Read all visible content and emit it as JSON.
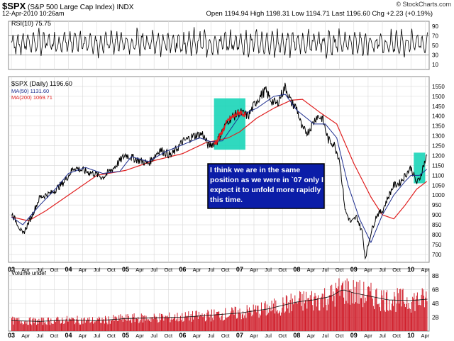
{
  "header": {
    "symbol": "$SPX",
    "name": "(S&P 500 Large Cap Index)",
    "exchange": "INDX",
    "date": "12-Apr-2010 10:26am",
    "open_label": "Open",
    "open": "1194.94",
    "high_label": "High",
    "high": "1198.31",
    "low_label": "Low",
    "low": "1194.71",
    "last_label": "Last",
    "last": "1196.60",
    "chg_label": "Chg",
    "chg": "+2.23 (+0.19%)",
    "copyright": "© StockCharts.com"
  },
  "colors": {
    "price": "#000000",
    "ma50": "#1f2f8f",
    "ma200": "#e02020",
    "highlight": "#19d5b8",
    "volume": "#d01f2b",
    "note_text": "#ffffff",
    "note_bg": "#0b1da8"
  },
  "annotation": "I think we are in the same position as we were in `07 only I expect it to unfold more rapidly this time.",
  "chart_data": [
    {
      "type": "line",
      "panel": "rsi",
      "legend": "RSI(10) 75.75",
      "y_ticks": [
        10,
        30,
        50,
        70,
        90
      ],
      "ylim": [
        0,
        100
      ],
      "reference_lines": [
        30,
        70
      ],
      "note": "oscillates mostly between 30 and 80"
    },
    {
      "type": "line",
      "panel": "price",
      "legend_title": "$SPX (Daily) 1196.60",
      "series": [
        {
          "name": "MA(50) 1131.60",
          "color": "#1f2f8f",
          "x": [
            2003.0,
            2003.2,
            2003.5,
            2003.8,
            2004.0,
            2004.3,
            2004.6,
            2004.9,
            2005.1,
            2005.4,
            2005.7,
            2006.0,
            2006.3,
            2006.5,
            2006.7,
            2007.0,
            2007.3,
            2007.6,
            2007.8,
            2008.0,
            2008.3,
            2008.5,
            2008.7,
            2008.9,
            2009.1,
            2009.3,
            2009.5,
            2009.7,
            2009.9,
            2010.0,
            2010.15,
            2010.28
          ],
          "values": [
            890,
            850,
            950,
            1040,
            1110,
            1140,
            1110,
            1120,
            1195,
            1170,
            1220,
            1255,
            1290,
            1270,
            1275,
            1400,
            1440,
            1500,
            1510,
            1430,
            1360,
            1360,
            1290,
            1050,
            880,
            760,
            900,
            1000,
            1070,
            1100,
            1100,
            1131.6
          ]
        },
        {
          "name": "MA(200) 1069.71",
          "color": "#e02020",
          "x": [
            2003.0,
            2003.3,
            2003.6,
            2004.0,
            2004.5,
            2005.0,
            2005.5,
            2006.0,
            2006.4,
            2006.8,
            2007.0,
            2007.3,
            2007.6,
            2007.9,
            2008.1,
            2008.4,
            2008.7,
            2009.0,
            2009.3,
            2009.5,
            2009.7,
            2009.9,
            2010.1,
            2010.28
          ],
          "values": [
            890,
            870,
            920,
            1000,
            1100,
            1125,
            1175,
            1210,
            1265,
            1290,
            1320,
            1390,
            1440,
            1480,
            1485,
            1420,
            1360,
            1160,
            990,
            900,
            880,
            950,
            1030,
            1069.71
          ]
        },
        {
          "name": "$SPX (Daily) 1196.60",
          "color": "#000000",
          "x": [
            2003.0,
            2003.1,
            2003.2,
            2003.35,
            2003.5,
            2003.7,
            2003.9,
            2004.1,
            2004.3,
            2004.45,
            2004.6,
            2004.8,
            2005.0,
            2005.2,
            2005.4,
            2005.6,
            2005.8,
            2006.0,
            2006.2,
            2006.35,
            2006.45,
            2006.6,
            2006.8,
            2007.0,
            2007.15,
            2007.3,
            2007.45,
            2007.55,
            2007.65,
            2007.8,
            2007.9,
            2008.0,
            2008.1,
            2008.2,
            2008.35,
            2008.45,
            2008.55,
            2008.65,
            2008.75,
            2008.85,
            2008.95,
            2009.05,
            2009.15,
            2009.2,
            2009.3,
            2009.4,
            2009.5,
            2009.6,
            2009.7,
            2009.8,
            2009.9,
            2010.0,
            2010.1,
            2010.15,
            2010.22,
            2010.28
          ],
          "values": [
            910,
            860,
            800,
            890,
            990,
            1010,
            1060,
            1140,
            1120,
            1110,
            1090,
            1140,
            1205,
            1180,
            1160,
            1230,
            1200,
            1270,
            1300,
            1310,
            1250,
            1270,
            1380,
            1420,
            1400,
            1480,
            1530,
            1480,
            1460,
            1550,
            1470,
            1440,
            1330,
            1320,
            1400,
            1390,
            1280,
            1260,
            1180,
            920,
            860,
            890,
            810,
            680,
            810,
            900,
            920,
            990,
            1050,
            1060,
            1100,
            1140,
            1060,
            1080,
            1150,
            1196.6
          ]
        }
      ],
      "highlights": [
        {
          "x": [
            2006.55,
            2007.1
          ],
          "y": [
            1230,
            1490
          ]
        },
        {
          "x": [
            2010.05,
            2010.25
          ],
          "y": [
            1060,
            1215
          ]
        }
      ],
      "y_ticks": [
        700,
        750,
        800,
        850,
        900,
        950,
        1000,
        1050,
        1100,
        1150,
        1200,
        1250,
        1300,
        1350,
        1400,
        1450,
        1500,
        1550
      ],
      "ylim": [
        660,
        1600
      ],
      "xlim": [
        2002.95,
        2010.32
      ]
    },
    {
      "type": "bar",
      "panel": "volume",
      "legend": "Volume undef",
      "y_ticks": [
        "2B",
        "4B",
        "6B",
        "8B"
      ],
      "ylim": [
        0,
        9
      ],
      "unit": "B",
      "x": [
        2003.0,
        2003.5,
        2004.0,
        2004.5,
        2005.0,
        2005.5,
        2006.0,
        2006.5,
        2007.0,
        2007.5,
        2008.0,
        2008.3,
        2008.6,
        2008.8,
        2009.0,
        2009.3,
        2009.6,
        2010.0,
        2010.28
      ],
      "values": [
        1.5,
        1.4,
        1.6,
        1.5,
        1.8,
        1.9,
        2.0,
        2.3,
        2.6,
        3.2,
        4.2,
        4.5,
        5.0,
        6.0,
        5.5,
        5.0,
        4.5,
        4.4,
        4.6
      ]
    }
  ],
  "x_axis_labels": [
    {
      "t": 2003.0,
      "label": "03",
      "bold": true
    },
    {
      "t": 2003.25,
      "label": "Apr"
    },
    {
      "t": 2003.5,
      "label": "Jul"
    },
    {
      "t": 2003.75,
      "label": "Oct"
    },
    {
      "t": 2004.0,
      "label": "04",
      "bold": true
    },
    {
      "t": 2004.25,
      "label": "Apr"
    },
    {
      "t": 2004.5,
      "label": "Jul"
    },
    {
      "t": 2004.75,
      "label": "Oct"
    },
    {
      "t": 2005.0,
      "label": "05",
      "bold": true
    },
    {
      "t": 2005.25,
      "label": "Apr"
    },
    {
      "t": 2005.5,
      "label": "Jul"
    },
    {
      "t": 2005.75,
      "label": "Oct"
    },
    {
      "t": 2006.0,
      "label": "06",
      "bold": true
    },
    {
      "t": 2006.25,
      "label": "Apr"
    },
    {
      "t": 2006.5,
      "label": "Jul"
    },
    {
      "t": 2006.75,
      "label": "Oct"
    },
    {
      "t": 2007.0,
      "label": "07",
      "bold": true
    },
    {
      "t": 2007.25,
      "label": "Apr"
    },
    {
      "t": 2007.5,
      "label": "Jul"
    },
    {
      "t": 2007.75,
      "label": "Oct"
    },
    {
      "t": 2008.0,
      "label": "08",
      "bold": true
    },
    {
      "t": 2008.25,
      "label": "Apr"
    },
    {
      "t": 2008.5,
      "label": "Jul"
    },
    {
      "t": 2008.75,
      "label": "Oct"
    },
    {
      "t": 2009.0,
      "label": "09",
      "bold": true
    },
    {
      "t": 2009.25,
      "label": "Apr"
    },
    {
      "t": 2009.5,
      "label": "Jul"
    },
    {
      "t": 2009.75,
      "label": "Oct"
    },
    {
      "t": 2010.0,
      "label": "10",
      "bold": true
    },
    {
      "t": 2010.25,
      "label": "Apr"
    }
  ]
}
